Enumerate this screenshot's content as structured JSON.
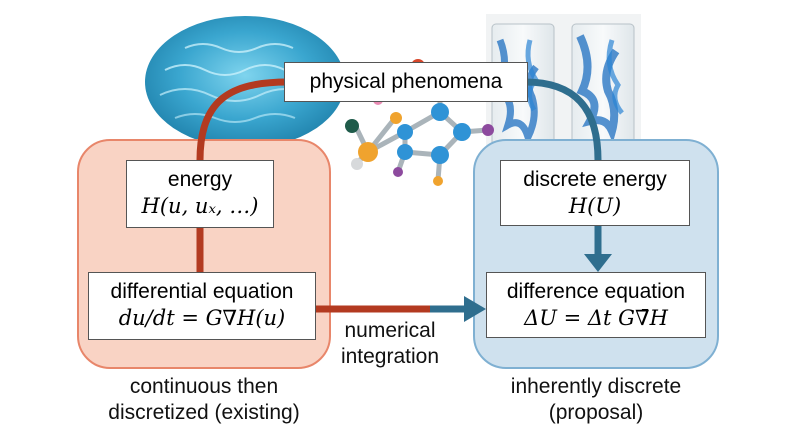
{
  "top": {
    "phenomena": "physical phenomena"
  },
  "left": {
    "energy_title": "energy",
    "energy_formula": "H(u, uₓ, …)",
    "eq_title": "differential equation",
    "eq_formula": "du/dt = G∇H(u)",
    "caption_line1": "continuous then",
    "caption_line2": "discretized (existing)"
  },
  "middle": {
    "arrow_label_line1": "numerical",
    "arrow_label_line2": "integration"
  },
  "right": {
    "energy_title": "discrete energy",
    "energy_formula": "H(U)",
    "eq_title": "difference equation",
    "eq_formula": "ΔU = Δt G∇̄H",
    "caption_line1": "inherently discrete",
    "caption_line2": "(proposal)"
  },
  "colors": {
    "left_panel_fill": "#f9d3c4",
    "left_panel_border": "#e8866a",
    "right_panel_fill": "#cfe1ee",
    "right_panel_border": "#7fb0d2",
    "red_arrow": "#b33a20",
    "blue_arrow": "#2f6e8e"
  }
}
